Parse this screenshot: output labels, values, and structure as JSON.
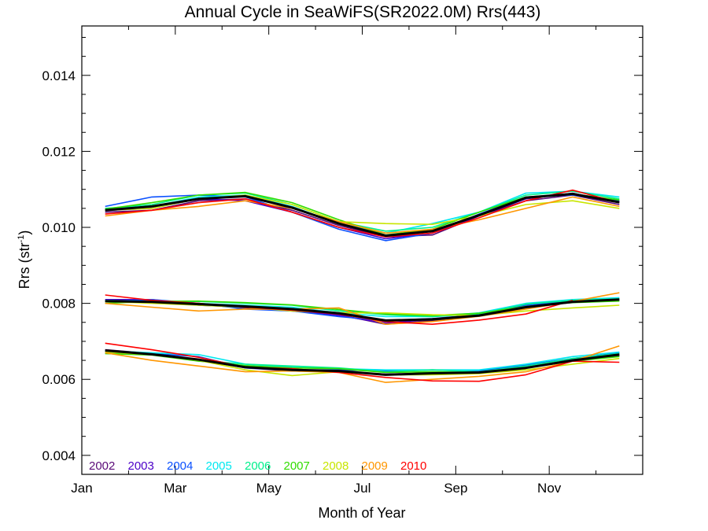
{
  "chart_data": {
    "type": "line",
    "title": "Annual Cycle in SeaWiFS(SR2022.0M) Rrs(443)",
    "xlabel": "Month of Year",
    "ylabel_main": "Rrs (str",
    "ylabel_sup": "-1",
    "ylabel_close": ")",
    "xlim": [
      1,
      13
    ],
    "ylim": [
      0.0035,
      0.0153
    ],
    "xticks": [
      {
        "label": "Jan",
        "value": 1
      },
      {
        "label": "Mar",
        "value": 3
      },
      {
        "label": "May",
        "value": 5
      },
      {
        "label": "Jul",
        "value": 7
      },
      {
        "label": "Sep",
        "value": 9
      },
      {
        "label": "Nov",
        "value": 11
      }
    ],
    "yticks": [
      {
        "label": "0.004",
        "value": 0.004
      },
      {
        "label": "0.006",
        "value": 0.006
      },
      {
        "label": "0.008",
        "value": 0.008
      },
      {
        "label": "0.010",
        "value": 0.01
      },
      {
        "label": "0.012",
        "value": 0.012
      },
      {
        "label": "0.014",
        "value": 0.014
      }
    ],
    "x": [
      1.5,
      2.5,
      3.5,
      4.5,
      5.5,
      6.5,
      7.5,
      8.5,
      9.5,
      10.5,
      11.5,
      12.5
    ],
    "series": [
      {
        "name": "2002",
        "color": "#5a0a78",
        "groups": [
          [
            0.0104,
            0.01045,
            0.0107,
            0.01075,
            0.01045,
            0.01005,
            0.00975,
            0.0098,
            0.0103,
            0.0107,
            0.01085,
            0.0106
          ],
          [
            0.00808,
            0.00805,
            0.008,
            0.00788,
            0.0078,
            0.0077,
            0.00745,
            0.00755,
            0.00768,
            0.0079,
            0.00805,
            0.00808
          ],
          [
            0.00678,
            0.00668,
            0.0065,
            0.00632,
            0.00625,
            0.00622,
            0.00612,
            0.00618,
            0.0062,
            0.0063,
            0.0065,
            0.00662
          ]
        ]
      },
      {
        "name": "2003",
        "color": "#4b00c8",
        "groups": [
          [
            0.01045,
            0.0105,
            0.01075,
            0.0107,
            0.0104,
            0.01,
            0.0097,
            0.00985,
            0.0103,
            0.01075,
            0.0109,
            0.01065
          ],
          [
            0.0081,
            0.0081,
            0.00795,
            0.0079,
            0.00782,
            0.00768,
            0.00748,
            0.00758,
            0.0077,
            0.00792,
            0.00806,
            0.0081
          ],
          [
            0.00676,
            0.00668,
            0.00652,
            0.0063,
            0.00622,
            0.0062,
            0.00614,
            0.00616,
            0.0062,
            0.00632,
            0.00652,
            0.00666
          ]
        ]
      },
      {
        "name": "2004",
        "color": "#0a50ff",
        "groups": [
          [
            0.01055,
            0.0108,
            0.01085,
            0.0108,
            0.0104,
            0.00995,
            0.00965,
            0.00985,
            0.01035,
            0.0108,
            0.01085,
            0.0107
          ],
          [
            0.00805,
            0.0081,
            0.008,
            0.00785,
            0.0078,
            0.00765,
            0.00755,
            0.0076,
            0.0077,
            0.00795,
            0.00808,
            0.00812
          ],
          [
            0.00672,
            0.00668,
            0.0066,
            0.0063,
            0.00625,
            0.00625,
            0.00622,
            0.00625,
            0.00622,
            0.00638,
            0.00655,
            0.0067
          ]
        ]
      },
      {
        "name": "2005",
        "color": "#00e8f0",
        "groups": [
          [
            0.0105,
            0.01055,
            0.0108,
            0.01085,
            0.01055,
            0.0101,
            0.00985,
            0.0101,
            0.0104,
            0.0109,
            0.01095,
            0.0108
          ],
          [
            0.00808,
            0.00805,
            0.008,
            0.00795,
            0.0079,
            0.00775,
            0.00765,
            0.00765,
            0.00775,
            0.008,
            0.0081,
            0.00815
          ],
          [
            0.00675,
            0.0067,
            0.00665,
            0.0064,
            0.00632,
            0.00628,
            0.00625,
            0.00625,
            0.00625,
            0.0064,
            0.0066,
            0.00672
          ]
        ]
      },
      {
        "name": "2006",
        "color": "#00f08c",
        "groups": [
          [
            0.0105,
            0.0106,
            0.01085,
            0.0109,
            0.0106,
            0.01015,
            0.0099,
            0.01,
            0.0104,
            0.01085,
            0.01095,
            0.01075
          ],
          [
            0.00805,
            0.00805,
            0.00805,
            0.008,
            0.00795,
            0.0078,
            0.0077,
            0.00765,
            0.00772,
            0.00798,
            0.00808,
            0.00812
          ],
          [
            0.00668,
            0.00665,
            0.0065,
            0.0064,
            0.00635,
            0.0063,
            0.0062,
            0.00625,
            0.0062,
            0.00635,
            0.00655,
            0.00668
          ]
        ]
      },
      {
        "name": "2007",
        "color": "#32dc00",
        "groups": [
          [
            0.01048,
            0.01065,
            0.01085,
            0.01092,
            0.01065,
            0.0102,
            0.0098,
            0.00995,
            0.0104,
            0.0108,
            0.01088,
            0.01072
          ],
          [
            0.008,
            0.00805,
            0.00806,
            0.00802,
            0.00796,
            0.00784,
            0.00772,
            0.00768,
            0.00774,
            0.00792,
            0.00802,
            0.00806
          ],
          [
            0.00668,
            0.00664,
            0.00648,
            0.00636,
            0.0063,
            0.00628,
            0.00618,
            0.0062,
            0.00618,
            0.0063,
            0.00648,
            0.0066
          ]
        ]
      },
      {
        "name": "2008",
        "color": "#c8e600",
        "groups": [
          [
            0.01045,
            0.0105,
            0.01075,
            0.01085,
            0.0106,
            0.01015,
            0.0101,
            0.01008,
            0.0103,
            0.0106,
            0.0107,
            0.0105
          ],
          [
            0.00805,
            0.008,
            0.00795,
            0.0079,
            0.0078,
            0.00775,
            0.00775,
            0.0077,
            0.00768,
            0.0078,
            0.00788,
            0.00795
          ],
          [
            0.00672,
            0.00665,
            0.0065,
            0.00625,
            0.0061,
            0.0062,
            0.00612,
            0.00612,
            0.00615,
            0.00625,
            0.0064,
            0.00655
          ]
        ]
      },
      {
        "name": "2009",
        "color": "#ff9600",
        "groups": [
          [
            0.0103,
            0.01045,
            0.01055,
            0.0107,
            0.0105,
            0.01015,
            0.00985,
            0.00995,
            0.0102,
            0.0105,
            0.0108,
            0.01055
          ],
          [
            0.008,
            0.0079,
            0.0078,
            0.00785,
            0.00785,
            0.00788,
            0.00745,
            0.00752,
            0.00766,
            0.00785,
            0.00805,
            0.00828
          ],
          [
            0.0067,
            0.0065,
            0.00635,
            0.0062,
            0.00622,
            0.00618,
            0.00592,
            0.006,
            0.00608,
            0.0062,
            0.00648,
            0.00688
          ]
        ]
      },
      {
        "name": "2010",
        "color": "#ff0000",
        "groups": [
          [
            0.01035,
            0.01045,
            0.01065,
            0.01075,
            0.0104,
            0.01,
            0.00975,
            0.00985,
            0.01025,
            0.0107,
            0.01098,
            0.01065
          ],
          [
            0.00822,
            0.00808,
            0.008,
            0.0079,
            0.00782,
            0.00772,
            0.00752,
            0.00745,
            0.00756,
            0.00772,
            0.00808,
            null
          ],
          [
            0.00695,
            0.00678,
            0.00658,
            0.00632,
            0.00628,
            0.00618,
            0.00605,
            0.00596,
            0.00595,
            0.00612,
            0.00648,
            0.00645
          ]
        ]
      },
      {
        "name": "",
        "color": "#000000",
        "groups": [
          [
            0.01045,
            0.01055,
            0.01075,
            0.01082,
            0.01052,
            0.0101,
            0.00978,
            0.0099,
            0.01032,
            0.01078,
            0.01088,
            0.01066
          ],
          [
            0.00806,
            0.00804,
            0.00798,
            0.00792,
            0.00785,
            0.00774,
            0.00755,
            0.00758,
            0.00768,
            0.0079,
            0.00804,
            0.0081
          ],
          [
            0.00676,
            0.00666,
            0.00652,
            0.00632,
            0.00625,
            0.00622,
            0.00612,
            0.00616,
            0.00618,
            0.0063,
            0.0065,
            0.00665
          ]
        ]
      }
    ],
    "legend_location": "bottom-left",
    "grid": false
  }
}
